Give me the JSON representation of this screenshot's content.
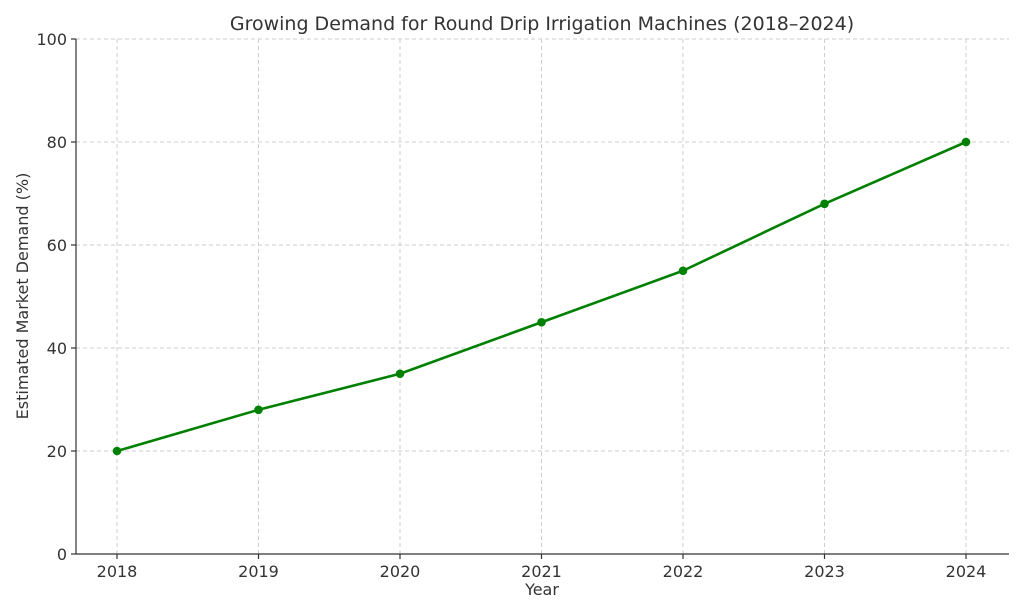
{
  "chart_data": {
    "type": "line",
    "title": "Growing Demand for Round Drip Irrigation Machines (2018–2024)",
    "xlabel": "Year",
    "ylabel": "Estimated Market Demand (%)",
    "x": [
      "2018",
      "2019",
      "2020",
      "2021",
      "2022",
      "2023",
      "2024"
    ],
    "series": [
      {
        "values": [
          20,
          28,
          35,
          45,
          55,
          68,
          80
        ],
        "color": "#008000",
        "marker": "circle"
      }
    ],
    "ylim": [
      0,
      100
    ],
    "yticks": [
      "0",
      "20",
      "40",
      "60",
      "80",
      "100"
    ],
    "grid": true
  }
}
